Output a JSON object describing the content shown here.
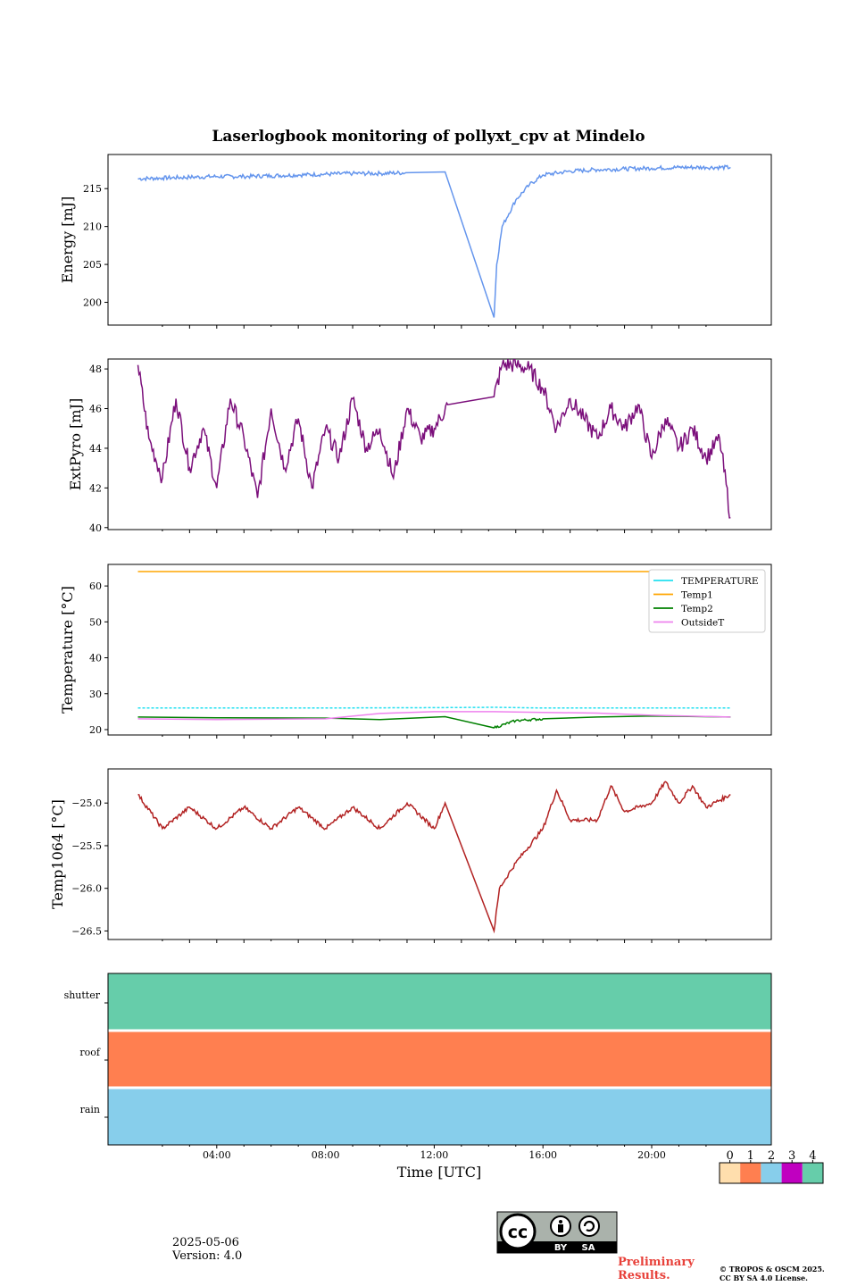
{
  "figure_title": "Laserlogbook monitoring of pollyxt_cpv at Mindelo",
  "x_label": "Time [UTC]",
  "x_ticks": [
    "04:00",
    "08:00",
    "12:00",
    "16:00",
    "20:00"
  ],
  "chart_data": [
    {
      "type": "line",
      "ylabel": "Energy [mJ]",
      "ylim": [
        197,
        219.5
      ],
      "yticks": [
        200,
        205,
        210,
        215
      ],
      "series": [
        {
          "color": "#6495ed",
          "x": [
            1.1,
            2,
            3,
            4,
            5,
            6,
            7,
            8,
            9,
            10,
            11,
            12.4,
            14.2,
            14.3,
            14.5,
            15,
            15.5,
            16,
            17,
            18,
            19,
            20,
            21,
            22,
            22.9
          ],
          "y": [
            216.3,
            216.4,
            216.5,
            216.6,
            216.6,
            216.7,
            216.8,
            216.9,
            217.0,
            217.0,
            217.1,
            217.2,
            198.0,
            205,
            210,
            213.5,
            215.5,
            216.8,
            217.3,
            217.5,
            217.6,
            217.7,
            217.8,
            217.8,
            217.8
          ]
        }
      ]
    },
    {
      "type": "line",
      "ylabel": "ExtPyro [mJ]",
      "ylim": [
        39.9,
        48.5
      ],
      "yticks": [
        40,
        42,
        44,
        46,
        48
      ],
      "series": [
        {
          "color": "#7b0f7b",
          "x": [
            1.1,
            1.5,
            2,
            2.5,
            3,
            3.5,
            4,
            4.5,
            5,
            5.5,
            6,
            6.5,
            7,
            7.5,
            8,
            8.5,
            9,
            9.5,
            10,
            10.5,
            11,
            11.5,
            12,
            12.5,
            14.2,
            14.5,
            15,
            15.5,
            16,
            16.5,
            17,
            17.5,
            18,
            18.5,
            19,
            19.5,
            20,
            20.5,
            21,
            21.5,
            22,
            22.5,
            22.9
          ],
          "y": [
            48.2,
            44.5,
            42.5,
            46.5,
            43.0,
            45.0,
            42.0,
            46.5,
            44.5,
            41.5,
            46.0,
            43.0,
            45.5,
            42.0,
            45.0,
            43.5,
            46.5,
            44.0,
            45.0,
            42.5,
            46.0,
            44.5,
            45.0,
            46.2,
            46.6,
            48.2,
            48.2,
            48.0,
            47.0,
            45.0,
            46.5,
            45.5,
            44.5,
            46.0,
            45.0,
            46.2,
            43.5,
            45.5,
            44.0,
            45.0,
            43.5,
            44.5,
            40.5
          ]
        }
      ]
    },
    {
      "type": "line",
      "ylabel": "Temperature [°C]",
      "ylim": [
        18.5,
        66
      ],
      "yticks": [
        20,
        30,
        40,
        50,
        60
      ],
      "legend_loc": "upper right",
      "series": [
        {
          "name": "TEMPERATURE",
          "color": "#22e0f0",
          "x": [
            1.1,
            4,
            8,
            12,
            14.2,
            16,
            20,
            22.9
          ],
          "y": [
            26.0,
            26.0,
            26.0,
            26.1,
            26.2,
            26.0,
            26.0,
            26.0
          ]
        },
        {
          "name": "Temp1",
          "color": "#ffa500",
          "x": [
            1.1,
            22.9
          ],
          "y": [
            64.0,
            64.0
          ]
        },
        {
          "name": "Temp2",
          "color": "#008000",
          "x": [
            1.1,
            4,
            8,
            10,
            12.4,
            14.2,
            15,
            16,
            18,
            20,
            22.9
          ],
          "y": [
            23.5,
            23.3,
            23.2,
            22.8,
            23.6,
            20.5,
            22.5,
            23.0,
            23.5,
            23.8,
            23.5
          ]
        },
        {
          "name": "OutsideT",
          "color": "#ee82ee",
          "x": [
            1.1,
            4,
            8,
            10,
            12,
            14.2,
            16,
            18,
            20,
            22.9
          ],
          "y": [
            23.0,
            22.8,
            23.0,
            24.5,
            25.0,
            25.0,
            24.8,
            24.6,
            24.0,
            23.5
          ]
        }
      ]
    },
    {
      "type": "line",
      "ylabel": "Temp1064 [°C]",
      "ylim": [
        -26.6,
        -24.6
      ],
      "yticks": [
        -25.0,
        -25.5,
        -26.0,
        -26.5
      ],
      "ytick_labels": [
        "−25.0",
        "−25.5",
        "−26.0",
        "−26.5"
      ],
      "series": [
        {
          "color": "#b22222",
          "x": [
            1.1,
            2,
            3,
            4,
            5,
            6,
            7,
            8,
            9,
            10,
            11,
            12,
            12.4,
            14.2,
            14.4,
            15,
            16,
            16.5,
            17,
            18,
            18.5,
            19,
            20,
            20.5,
            21,
            21.5,
            22,
            22.9
          ],
          "y": [
            -24.9,
            -25.3,
            -25.05,
            -25.3,
            -25.05,
            -25.3,
            -25.05,
            -25.3,
            -25.05,
            -25.3,
            -25.0,
            -25.3,
            -25.0,
            -26.5,
            -26.0,
            -25.7,
            -25.3,
            -24.85,
            -25.2,
            -25.2,
            -24.8,
            -25.1,
            -25.0,
            -24.75,
            -25.0,
            -24.8,
            -25.05,
            -24.9
          ]
        }
      ]
    },
    {
      "type": "heatmap",
      "rows": [
        "shutter",
        "roof",
        "rain"
      ],
      "row_values": [
        4,
        1,
        2
      ],
      "colorbar": {
        "ticks": [
          "0",
          "1",
          "2",
          "3",
          "4"
        ],
        "colors": [
          "#ffdead",
          "#ff7f50",
          "#87ceeb",
          "#c000c0",
          "#66cdaa"
        ]
      }
    }
  ],
  "footer": {
    "date": "2025-05-06",
    "version": "Version: 4.0",
    "preliminary": [
      "Preliminary",
      "Results."
    ],
    "copyright": [
      "© TROPOS & OSCM 2025.",
      "CC BY SA 4.0 License."
    ],
    "license_badge": {
      "cc": "cc",
      "by": "BY",
      "sa": "SA"
    }
  }
}
